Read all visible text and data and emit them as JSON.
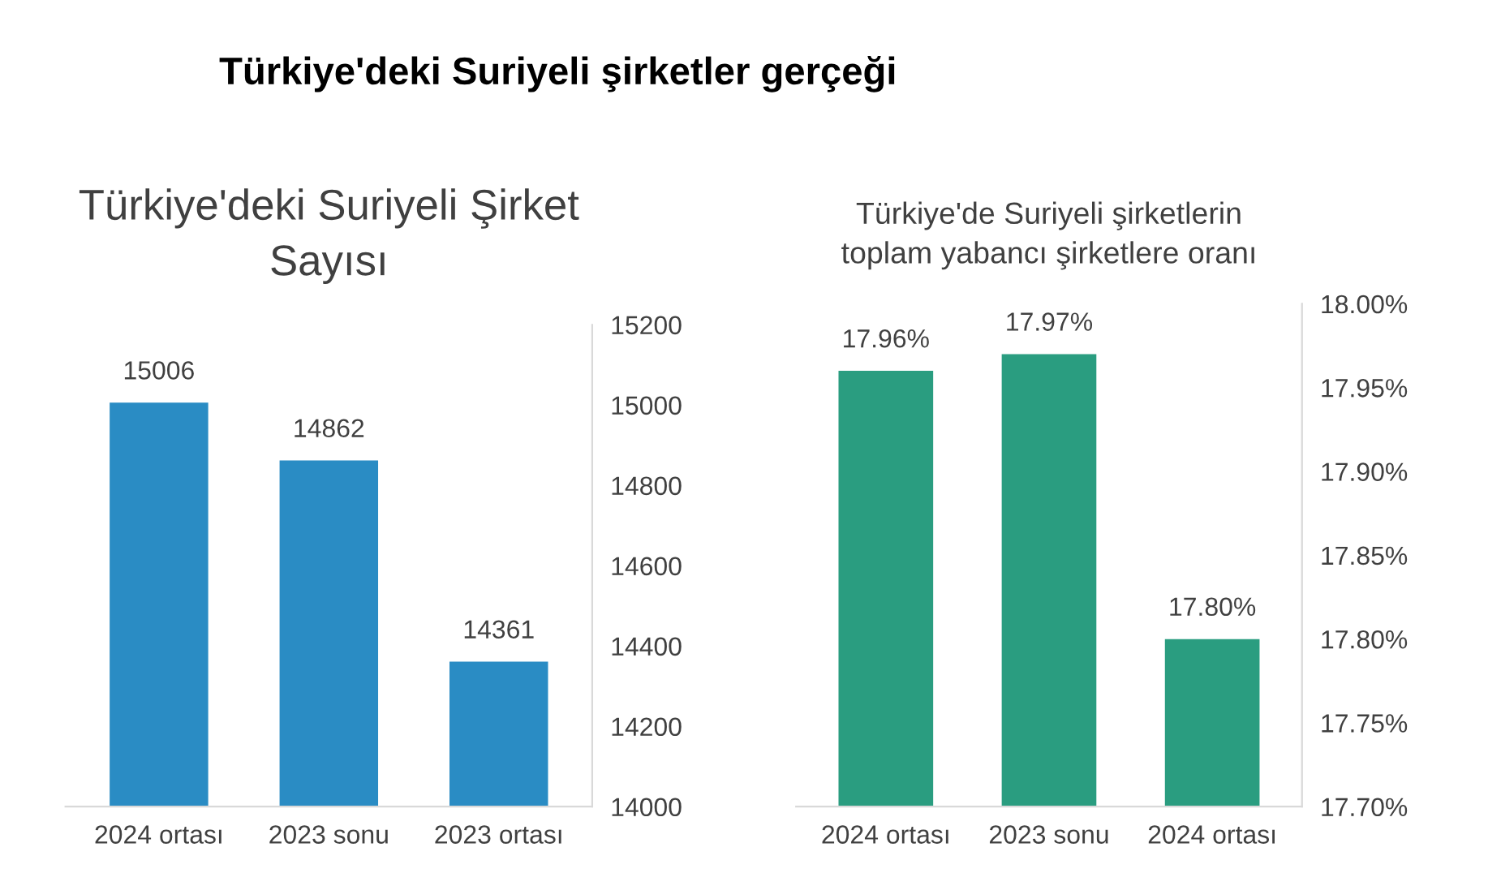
{
  "chart_data": [
    {
      "type": "bar",
      "title": "Türkiye'deki Suriyeli Şirket\nSayısı",
      "annotations": [
        "Türkiye'deki Suriyeli şirketler gerçeği"
      ],
      "categories": [
        "2024 ortası",
        "2023 sonu",
        "2023 ortası"
      ],
      "values": [
        15006,
        14862,
        14361
      ],
      "color": "#2a8cc4",
      "ylim": [
        14000,
        15200
      ],
      "yticks": [
        14000,
        14200,
        14400,
        14600,
        14800,
        15000,
        15200
      ],
      "data_labels": true,
      "grid": false
    },
    {
      "type": "bar",
      "title": "Türkiye'de Suriyeli şirketlerin\ntoplam yabancı şirketlere oranı",
      "categories": [
        "2024 ortası",
        "2023 sonu",
        "2024 ortası"
      ],
      "values": [
        17.96,
        17.97,
        17.8
      ],
      "value_labels": [
        "17.96%",
        "17.97%",
        "17.80%"
      ],
      "color": "#2a9d80",
      "ylim": [
        17.7,
        18.0
      ],
      "yticks": [
        {
          "value": 17.7,
          "label": "17.70%"
        },
        {
          "value": 17.75,
          "label": "17.75%"
        },
        {
          "value": 17.8,
          "label": "17.80%"
        },
        {
          "value": 17.85,
          "label": "17.85%"
        },
        {
          "value": 17.9,
          "label": "17.90%"
        },
        {
          "value": 17.95,
          "label": "17.95%"
        },
        {
          "value": 18.0,
          "label": "18.00%"
        }
      ],
      "grid": false
    }
  ]
}
